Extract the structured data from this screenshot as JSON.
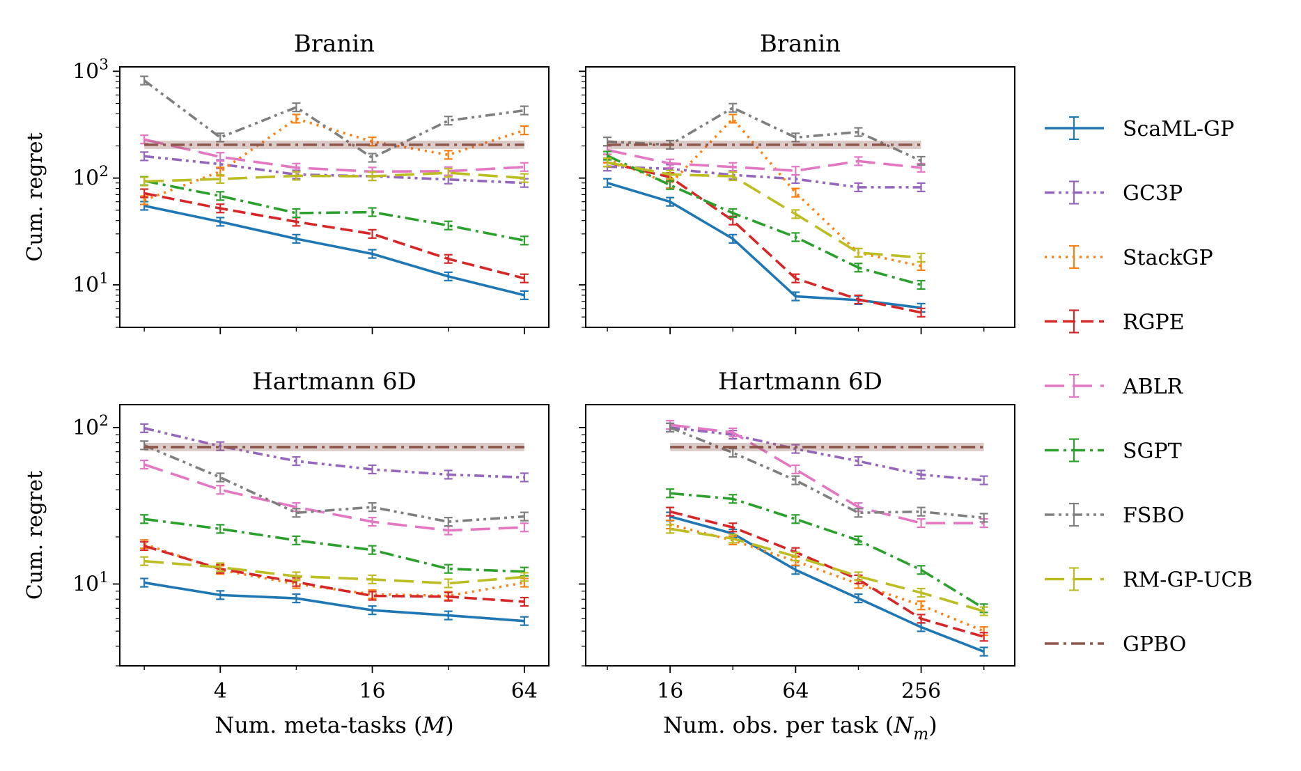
{
  "legend": [
    {
      "name": "ScaML-GP",
      "color": "#1f77b4",
      "dash": "solid"
    },
    {
      "name": "GC3P",
      "color": "#9467bd",
      "dash": "dashdotdot"
    },
    {
      "name": "StackGP",
      "color": "#ff7f0e",
      "dash": "dotted"
    },
    {
      "name": "RGPE",
      "color": "#d62728",
      "dash": "dashed"
    },
    {
      "name": "ABLR",
      "color": "#e377c2",
      "dash": "longdash"
    },
    {
      "name": "SGPT",
      "color": "#2ca02c",
      "dash": "dashdot"
    },
    {
      "name": "FSBO",
      "color": "#7f7f7f",
      "dash": "dashdotdot"
    },
    {
      "name": "RM-GP-UCB",
      "color": "#bcbd22",
      "dash": "longdash"
    },
    {
      "name": "GPBO",
      "color": "#8c564b",
      "dash": "dashdot"
    }
  ],
  "chart_data": [
    {
      "type": "line",
      "title": "Branin",
      "xlabel": "",
      "ylabel": "Cum. regret",
      "xscale": "log2",
      "yscale": "log10",
      "x": [
        2,
        4,
        8,
        16,
        32,
        64
      ],
      "xlim": [
        1.6,
        80
      ],
      "xticks": [
        4,
        16,
        64
      ],
      "xticklabels": [],
      "ylim": [
        4,
        1100
      ],
      "yticks": [
        10,
        100,
        1000
      ],
      "yticklabels": [
        "10^1",
        "10^2",
        "10^3"
      ],
      "series": [
        {
          "name": "ScaML-GP",
          "values": [
            55,
            39,
            27,
            19.5,
            12,
            8
          ]
        },
        {
          "name": "GC3P",
          "values": [
            160,
            135,
            108,
            104,
            97,
            90
          ]
        },
        {
          "name": "StackGP",
          "values": [
            62,
            115,
            360,
            220,
            165,
            280
          ]
        },
        {
          "name": "RGPE",
          "values": [
            72,
            52,
            39,
            30,
            17.5,
            11.5
          ]
        },
        {
          "name": "ABLR",
          "values": [
            230,
            158,
            125,
            115,
            116,
            127
          ]
        },
        {
          "name": "SGPT",
          "values": [
            94,
            68,
            47,
            48,
            36,
            26
          ]
        },
        {
          "name": "FSBO",
          "values": [
            820,
            240,
            460,
            155,
            345,
            430
          ]
        },
        {
          "name": "RM-GP-UCB",
          "values": [
            93,
            98,
            105,
            104,
            112,
            100
          ]
        },
        {
          "name": "GPBO",
          "values": [
            205,
            205,
            205,
            205,
            205,
            205
          ]
        }
      ]
    },
    {
      "type": "line",
      "title": "Branin",
      "xlabel": "",
      "ylabel": "",
      "xscale": "log2",
      "yscale": "log10",
      "x": [
        8,
        16,
        32,
        64,
        128,
        256
      ],
      "xlim": [
        6.3,
        720
      ],
      "xticks": [
        16,
        64,
        256
      ],
      "xticklabels": [],
      "ylim": [
        4,
        1100
      ],
      "yticks": [
        10,
        100,
        1000
      ],
      "yticklabels": [],
      "series": [
        {
          "name": "ScaML-GP",
          "values": [
            90,
            60,
            27,
            7.8,
            7.2,
            6.1
          ]
        },
        {
          "name": "GC3P",
          "values": [
            128,
            122,
            107,
            98,
            82,
            82
          ]
        },
        {
          "name": "StackGP",
          "values": [
            152,
            88,
            360,
            73,
            20,
            15
          ]
        },
        {
          "name": "RGPE",
          "values": [
            140,
            102,
            40,
            11.5,
            7.3,
            5.5
          ]
        },
        {
          "name": "ABLR",
          "values": [
            183,
            137,
            127,
            117,
            144,
            125
          ]
        },
        {
          "name": "SGPT",
          "values": [
            162,
            86,
            47,
            28,
            14.5,
            10
          ]
        },
        {
          "name": "FSBO",
          "values": [
            220,
            205,
            455,
            240,
            270,
            145
          ]
        },
        {
          "name": "RM-GP-UCB",
          "values": [
            140,
            108,
            104,
            46,
            20,
            18
          ]
        },
        {
          "name": "GPBO",
          "values": [
            205,
            205,
            205,
            205,
            205,
            205
          ]
        }
      ]
    },
    {
      "type": "line",
      "title": "Hartmann 6D",
      "xlabel": "Num. meta-tasks (M)",
      "ylabel": "Cum. regret",
      "xscale": "log2",
      "yscale": "log10",
      "x": [
        2,
        4,
        8,
        16,
        32,
        64
      ],
      "xlim": [
        1.6,
        80
      ],
      "xticks": [
        4,
        16,
        64
      ],
      "xticklabels": [
        "4",
        "16",
        "64"
      ],
      "ylim": [
        3,
        140
      ],
      "yticks": [
        10,
        100
      ],
      "yticklabels": [
        "10^1",
        "10^2"
      ],
      "series": [
        {
          "name": "ScaML-GP",
          "values": [
            10.2,
            8.5,
            8.1,
            6.8,
            6.3,
            5.8
          ]
        },
        {
          "name": "GC3P",
          "values": [
            99,
            76,
            61,
            54,
            50,
            48
          ]
        },
        {
          "name": "StackGP",
          "values": [
            18,
            12.3,
            10,
            8.6,
            8.4,
            10.2
          ]
        },
        {
          "name": "RGPE",
          "values": [
            17.5,
            12.5,
            10.3,
            8.4,
            8.3,
            7.7
          ]
        },
        {
          "name": "ABLR",
          "values": [
            58,
            40,
            31,
            25,
            22,
            23
          ]
        },
        {
          "name": "SGPT",
          "values": [
            26,
            22.5,
            19,
            16.5,
            12.5,
            12
          ]
        },
        {
          "name": "FSBO",
          "values": [
            77,
            48,
            28.5,
            31,
            25,
            27
          ]
        },
        {
          "name": "RM-GP-UCB",
          "values": [
            14,
            12.8,
            11.2,
            10.7,
            10.1,
            11.1
          ]
        },
        {
          "name": "GPBO",
          "values": [
            75,
            75,
            75,
            75,
            75,
            75
          ]
        }
      ]
    },
    {
      "type": "line",
      "title": "Hartmann 6D",
      "xlabel": "Num. obs. per task (N_m)",
      "ylabel": "",
      "xscale": "log2",
      "yscale": "log10",
      "x": [
        16,
        32,
        64,
        128,
        256,
        512
      ],
      "xlim": [
        6.3,
        720
      ],
      "xticks": [
        16,
        64,
        256
      ],
      "xticklabels": [
        "16",
        "64",
        "256"
      ],
      "ylim": [
        3,
        140
      ],
      "yticks": [
        10,
        100
      ],
      "yticklabels": [],
      "series": [
        {
          "name": "ScaML-GP",
          "values": [
            27,
            21,
            12.3,
            8.1,
            5.3,
            3.7
          ]
        },
        {
          "name": "GC3P",
          "values": [
            100,
            90,
            73,
            61,
            50,
            46
          ]
        },
        {
          "name": "StackGP",
          "values": [
            24,
            19,
            14,
            10,
            7.3,
            5
          ]
        },
        {
          "name": "RGPE",
          "values": [
            29,
            23,
            16,
            10.7,
            6,
            4.6
          ]
        },
        {
          "name": "ABLR",
          "values": [
            104,
            93,
            54,
            31,
            24.5,
            24.5
          ]
        },
        {
          "name": "SGPT",
          "values": [
            38,
            35,
            26,
            19,
            12.3,
            7
          ]
        },
        {
          "name": "FSBO",
          "values": [
            100,
            69,
            46,
            28.5,
            29,
            26.5
          ]
        },
        {
          "name": "RM-GP-UCB",
          "values": [
            22.5,
            19.5,
            15,
            11.2,
            8.8,
            6.7
          ]
        },
        {
          "name": "GPBO",
          "values": [
            75,
            75,
            75,
            75,
            75,
            75
          ]
        }
      ]
    }
  ]
}
